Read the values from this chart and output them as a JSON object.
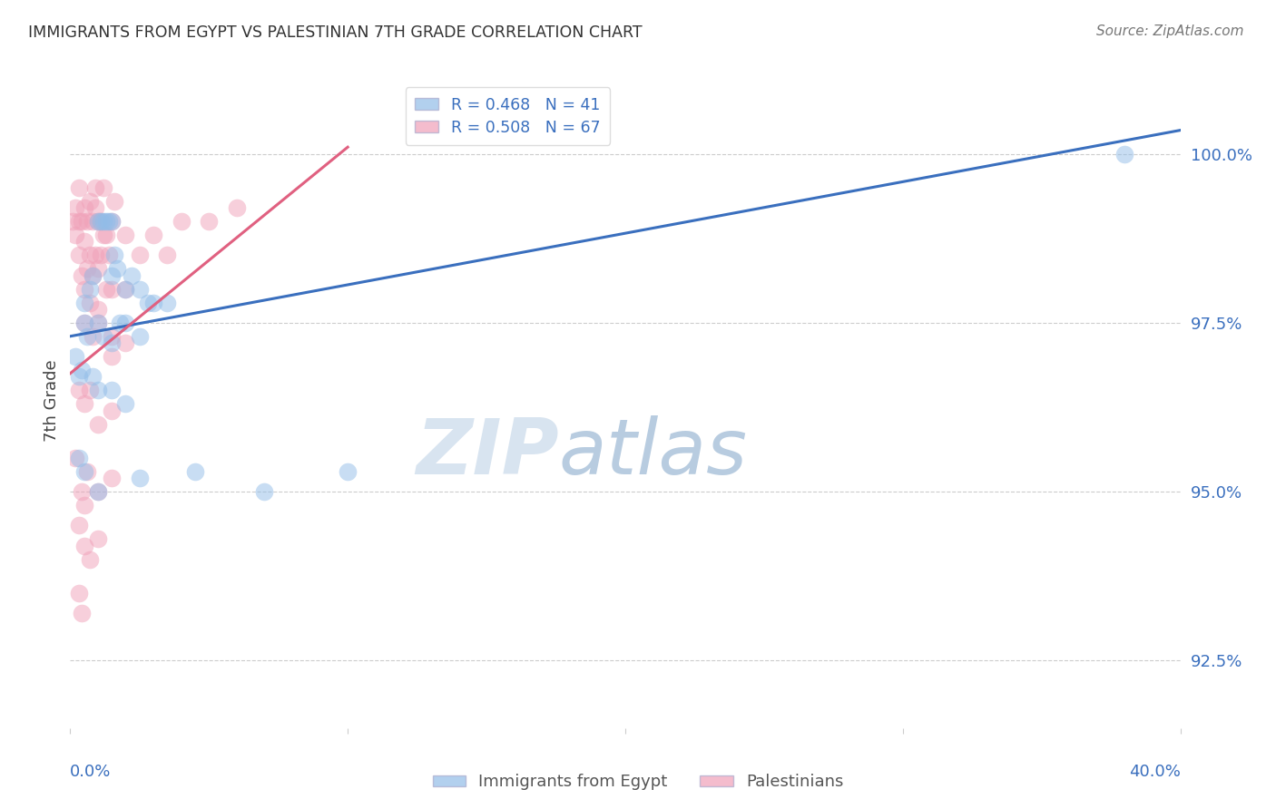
{
  "title": "IMMIGRANTS FROM EGYPT VS PALESTINIAN 7TH GRADE CORRELATION CHART",
  "source": "Source: ZipAtlas.com",
  "ylabel": "7th Grade",
  "y_ticks": [
    92.5,
    95.0,
    97.5,
    100.0
  ],
  "y_tick_labels": [
    "92.5%",
    "95.0%",
    "97.5%",
    "100.0%"
  ],
  "x_range": [
    0.0,
    40.0
  ],
  "y_range": [
    91.5,
    101.2
  ],
  "blue_color": "#92bde8",
  "pink_color": "#f0a0b8",
  "blue_line_color": "#3a6fbe",
  "pink_line_color": "#e06080",
  "watermark_zip": "ZIP",
  "watermark_atlas": "atlas",
  "blue_line_x": [
    0.0,
    40.0
  ],
  "blue_line_y": [
    97.3,
    100.35
  ],
  "pink_line_x": [
    0.0,
    10.0
  ],
  "pink_line_y": [
    96.75,
    100.1
  ],
  "egypt_scatter": [
    [
      0.3,
      96.7
    ],
    [
      0.5,
      97.8
    ],
    [
      0.7,
      98.0
    ],
    [
      0.8,
      98.2
    ],
    [
      1.0,
      99.0
    ],
    [
      1.1,
      99.0
    ],
    [
      1.2,
      99.0
    ],
    [
      1.3,
      99.0
    ],
    [
      1.4,
      99.0
    ],
    [
      1.5,
      99.0
    ],
    [
      1.5,
      98.2
    ],
    [
      1.6,
      98.5
    ],
    [
      1.7,
      98.3
    ],
    [
      1.8,
      97.5
    ],
    [
      2.0,
      98.0
    ],
    [
      2.2,
      98.2
    ],
    [
      2.5,
      98.0
    ],
    [
      2.8,
      97.8
    ],
    [
      3.0,
      97.8
    ],
    [
      3.5,
      97.8
    ],
    [
      0.5,
      97.5
    ],
    [
      0.6,
      97.3
    ],
    [
      1.0,
      97.5
    ],
    [
      1.2,
      97.3
    ],
    [
      1.5,
      97.2
    ],
    [
      2.0,
      97.5
    ],
    [
      2.5,
      97.3
    ],
    [
      0.4,
      96.8
    ],
    [
      0.8,
      96.7
    ],
    [
      1.0,
      96.5
    ],
    [
      1.5,
      96.5
    ],
    [
      2.0,
      96.3
    ],
    [
      0.3,
      95.5
    ],
    [
      0.5,
      95.3
    ],
    [
      1.0,
      95.0
    ],
    [
      2.5,
      95.2
    ],
    [
      4.5,
      95.3
    ],
    [
      7.0,
      95.0
    ],
    [
      10.0,
      95.3
    ],
    [
      0.2,
      97.0
    ],
    [
      38.0,
      100.0
    ]
  ],
  "palestine_scatter": [
    [
      0.1,
      99.0
    ],
    [
      0.2,
      99.2
    ],
    [
      0.2,
      98.8
    ],
    [
      0.3,
      99.5
    ],
    [
      0.3,
      99.0
    ],
    [
      0.3,
      98.5
    ],
    [
      0.4,
      99.0
    ],
    [
      0.4,
      98.2
    ],
    [
      0.5,
      99.2
    ],
    [
      0.5,
      98.7
    ],
    [
      0.5,
      98.0
    ],
    [
      0.6,
      99.0
    ],
    [
      0.6,
      98.3
    ],
    [
      0.7,
      99.3
    ],
    [
      0.7,
      98.5
    ],
    [
      0.7,
      97.8
    ],
    [
      0.8,
      99.0
    ],
    [
      0.8,
      98.2
    ],
    [
      0.9,
      99.2
    ],
    [
      0.9,
      98.5
    ],
    [
      1.0,
      99.0
    ],
    [
      1.0,
      98.3
    ],
    [
      1.0,
      97.7
    ],
    [
      1.1,
      99.0
    ],
    [
      1.1,
      98.5
    ],
    [
      1.2,
      98.8
    ],
    [
      1.3,
      98.8
    ],
    [
      1.3,
      98.0
    ],
    [
      1.4,
      98.5
    ],
    [
      1.5,
      99.0
    ],
    [
      1.5,
      98.0
    ],
    [
      1.5,
      97.3
    ],
    [
      2.0,
      98.8
    ],
    [
      2.0,
      98.0
    ],
    [
      2.5,
      98.5
    ],
    [
      3.0,
      98.8
    ],
    [
      3.5,
      98.5
    ],
    [
      4.0,
      99.0
    ],
    [
      0.5,
      97.5
    ],
    [
      0.8,
      97.3
    ],
    [
      1.0,
      97.5
    ],
    [
      1.5,
      97.0
    ],
    [
      2.0,
      97.2
    ],
    [
      0.3,
      96.5
    ],
    [
      0.5,
      96.3
    ],
    [
      0.7,
      96.5
    ],
    [
      1.0,
      96.0
    ],
    [
      1.5,
      96.2
    ],
    [
      0.2,
      95.5
    ],
    [
      0.4,
      95.0
    ],
    [
      0.6,
      95.3
    ],
    [
      1.0,
      95.0
    ],
    [
      1.5,
      95.2
    ],
    [
      0.3,
      94.5
    ],
    [
      0.5,
      94.2
    ],
    [
      0.5,
      94.8
    ],
    [
      0.7,
      94.0
    ],
    [
      1.0,
      94.3
    ],
    [
      0.3,
      93.5
    ],
    [
      0.4,
      93.2
    ],
    [
      5.0,
      99.0
    ],
    [
      6.0,
      99.2
    ],
    [
      1.2,
      99.5
    ],
    [
      0.9,
      99.5
    ],
    [
      1.6,
      99.3
    ]
  ]
}
